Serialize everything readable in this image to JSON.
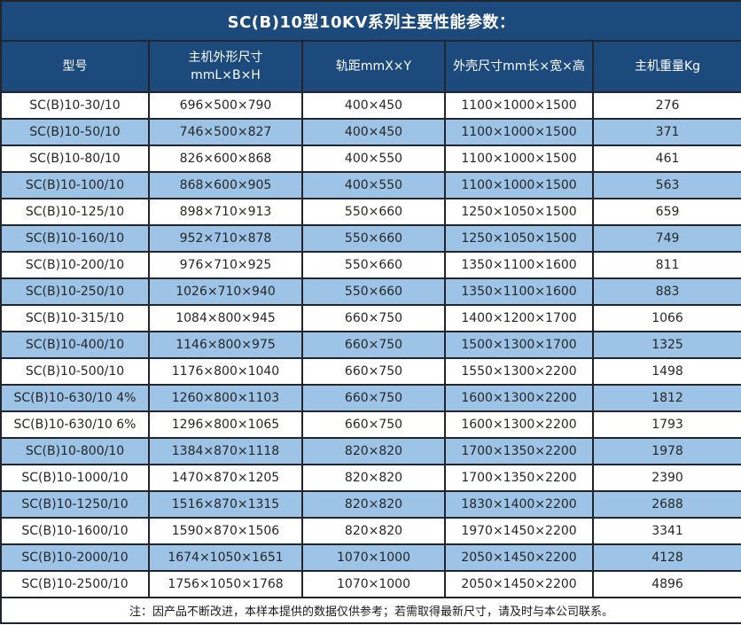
{
  "title": "SC(B)10型10KV系列主要性能参数：",
  "table": {
    "columns": [
      {
        "lines": [
          "型号"
        ]
      },
      {
        "lines": [
          "主机外形尺寸",
          "mmL×B×H"
        ]
      },
      {
        "lines": [
          "轨距mmX×Y"
        ]
      },
      {
        "lines": [
          "外壳尺寸mm长×宽×高"
        ]
      },
      {
        "lines": [
          "主机重量Kg"
        ]
      }
    ],
    "rows": [
      [
        "SC(B)10-30/10",
        "696×500×790",
        "400×450",
        "1100×1000×1500",
        "276"
      ],
      [
        "SC(B)10-50/10",
        "746×500×827",
        "400×450",
        "1100×1000×1500",
        "371"
      ],
      [
        "SC(B)10-80/10",
        "826×600×868",
        "400×550",
        "1100×1000×1500",
        "461"
      ],
      [
        "SC(B)10-100/10",
        "868×600×905",
        "400×550",
        "1100×1000×1500",
        "563"
      ],
      [
        "SC(B)10-125/10",
        "898×710×913",
        "550×660",
        "1250×1050×1500",
        "659"
      ],
      [
        "SC(B)10-160/10",
        "952×710×878",
        "550×660",
        "1250×1050×1500",
        "749"
      ],
      [
        "SC(B)10-200/10",
        "976×710×925",
        "550×660",
        "1350×1100×1600",
        "811"
      ],
      [
        "SC(B)10-250/10",
        "1026×710×940",
        "550×660",
        "1350×1100×1600",
        "883"
      ],
      [
        "SC(B)10-315/10",
        "1084×800×945",
        "660×750",
        "1400×1200×1700",
        "1066"
      ],
      [
        "SC(B)10-400/10",
        "1146×800×975",
        "660×750",
        "1500×1300×1700",
        "1325"
      ],
      [
        "SC(B)10-500/10",
        "1176×800×1040",
        "660×750",
        "1550×1300×2200",
        "1498"
      ],
      [
        "SC(B)10-630/10 4%",
        "1260×800×1103",
        "660×750",
        "1600×1300×2200",
        "1812"
      ],
      [
        "SC(B)10-630/10 6%",
        "1296×800×1065",
        "660×750",
        "1600×1300×2200",
        "1793"
      ],
      [
        "SC(B)10-800/10",
        "1384×870×1118",
        "820×820",
        "1700×1350×2200",
        "1978"
      ],
      [
        "SC(B)10-1000/10",
        "1470×870×1205",
        "820×820",
        "1700×1350×2200",
        "2390"
      ],
      [
        "SC(B)10-1250/10",
        "1516×870×1315",
        "820×820",
        "1830×1400×2200",
        "2688"
      ],
      [
        "SC(B)10-1600/10",
        "1590×870×1506",
        "820×820",
        "1970×1450×2200",
        "3341"
      ],
      [
        "SC(B)10-2000/10",
        "1674×1050×1651",
        "1070×1000",
        "2050×1450×2200",
        "4128"
      ],
      [
        "SC(B)10-2500/10",
        "1756×1050×1768",
        "1070×1000",
        "2050×1450×2200",
        "4896"
      ]
    ]
  },
  "footer_note": "注：因产品不断改进，本样本提供的数据仅供参考；若需取得最新尺寸，请及时与本公司联系。",
  "colors": {
    "header_bg": "#1C4A7C",
    "stripe_bg": "#9DC3E6",
    "row_bg": "#FFFFFF",
    "border": "#23252E",
    "text_dark": "#262626",
    "text_light": "#FFFFFF"
  }
}
